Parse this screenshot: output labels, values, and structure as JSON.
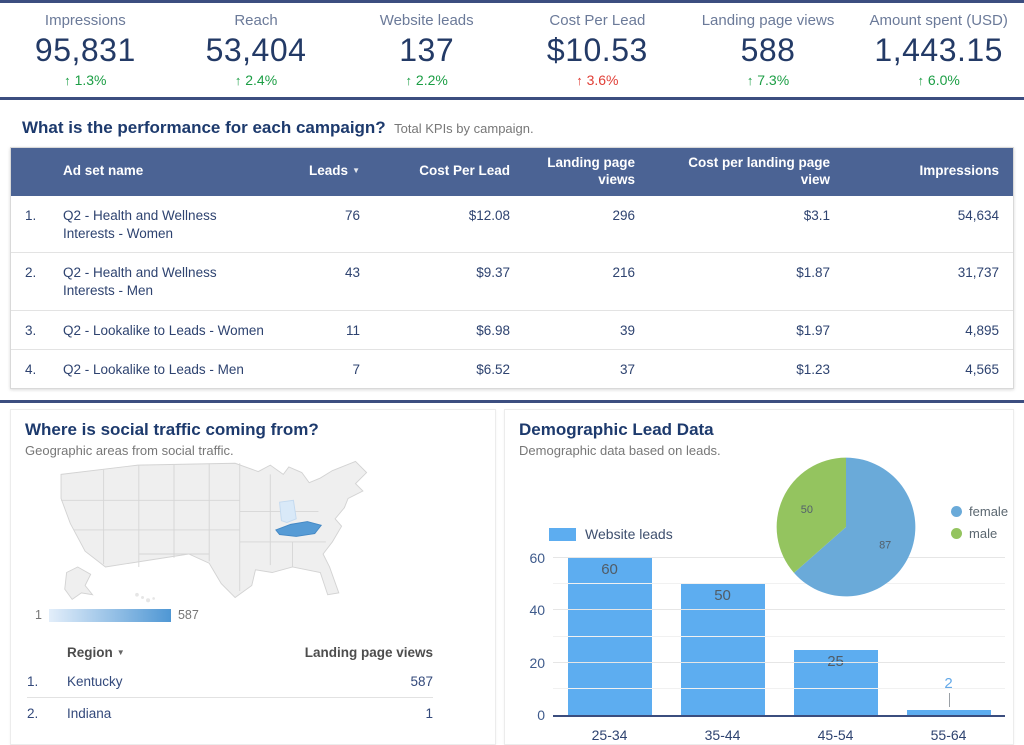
{
  "scorecards": [
    {
      "label": "Impressions",
      "value": "95,831",
      "delta": "1.3%",
      "direction": "up",
      "trend_color": "green"
    },
    {
      "label": "Reach",
      "value": "53,404",
      "delta": "2.4%",
      "direction": "up",
      "trend_color": "green"
    },
    {
      "label": "Website leads",
      "value": "137",
      "delta": "2.2%",
      "direction": "up",
      "trend_color": "green"
    },
    {
      "label": "Cost Per Lead",
      "value": "$10.53",
      "delta": "3.6%",
      "direction": "up",
      "trend_color": "red"
    },
    {
      "label": "Landing page views",
      "value": "588",
      "delta": "7.3%",
      "direction": "up",
      "trend_color": "green"
    },
    {
      "label": "Amount spent (USD)",
      "value": "1,443.15",
      "delta": "6.0%",
      "direction": "up",
      "trend_color": "green"
    }
  ],
  "campaign_section": {
    "title": "What is the performance for each campaign?",
    "subtitle": "Total KPIs by campaign.",
    "table": {
      "columns": {
        "name": "Ad set name",
        "leads": "Leads",
        "cpl": "Cost Per Lead",
        "lpv": "Landing page views",
        "cplpv": "Cost per landing page view",
        "impressions": "Impressions"
      },
      "sorted_by": "Leads",
      "rows": [
        {
          "index": "1.",
          "name": "Q2 - Health and Wellness Interests - Women",
          "leads": "76",
          "cpl": "$12.08",
          "lpv": "296",
          "cplpv": "$3.1",
          "impressions": "54,634"
        },
        {
          "index": "2.",
          "name": "Q2 - Health and Wellness Interests - Men",
          "leads": "43",
          "cpl": "$9.37",
          "lpv": "216",
          "cplpv": "$1.87",
          "impressions": "31,737"
        },
        {
          "index": "3.",
          "name": "Q2 - Lookalike to Leads - Women",
          "leads": "11",
          "cpl": "$6.98",
          "lpv": "39",
          "cplpv": "$1.97",
          "impressions": "4,895"
        },
        {
          "index": "4.",
          "name": "Q2 - Lookalike to Leads - Men",
          "leads": "7",
          "cpl": "$6.52",
          "lpv": "37",
          "cplpv": "$1.23",
          "impressions": "4,565"
        }
      ]
    }
  },
  "geo_section": {
    "title": "Where is social traffic coming from?",
    "subtitle": "Geographic areas from social traffic.",
    "map": {
      "scale_min": "1",
      "scale_max": "587",
      "state_fill": "#efefef",
      "state_stroke": "#d3d3d3",
      "kentucky_fill": "#569bd5",
      "indiana_fill": "#d9e9f8",
      "scale_start": "#e3eefa",
      "scale_end": "#4f97d4"
    },
    "table": {
      "region_header": "Region",
      "value_header": "Landing page views",
      "rows": [
        {
          "index": "1.",
          "region": "Kentucky",
          "value": "587"
        },
        {
          "index": "2.",
          "region": "Indiana",
          "value": "1"
        }
      ]
    }
  },
  "demo_section": {
    "title": "Demographic Lead Data",
    "subtitle": "Demographic data based on leads.",
    "bar_chart": {
      "legend": "Website leads",
      "color": "#5dadf0",
      "categories": [
        "25-34",
        "35-44",
        "45-54",
        "55-64"
      ],
      "values": [
        60,
        50,
        25,
        2
      ],
      "ymax": 60,
      "yticks": [
        0,
        20,
        40,
        60
      ]
    },
    "pie_chart": {
      "labels": [
        "female",
        "male"
      ],
      "values": [
        87,
        50
      ],
      "colors": [
        "#6aaad9",
        "#94c45f"
      ]
    }
  },
  "chart_data": [
    {
      "type": "table",
      "title": "What is the performance for each campaign?",
      "subtitle": "Total KPIs by campaign.",
      "columns": [
        "Ad set name",
        "Leads",
        "Cost Per Lead",
        "Landing page views",
        "Cost per landing page view",
        "Impressions"
      ],
      "rows": [
        [
          "Q2 - Health and Wellness Interests - Women",
          76,
          12.08,
          296,
          3.1,
          54634
        ],
        [
          "Q2 - Health and Wellness Interests - Men",
          43,
          9.37,
          216,
          1.87,
          31737
        ],
        [
          "Q2 - Lookalike to Leads - Women",
          11,
          6.98,
          39,
          1.97,
          4895
        ],
        [
          "Q2 - Lookalike to Leads - Men",
          7,
          6.52,
          37,
          1.23,
          4565
        ]
      ]
    },
    {
      "type": "bar",
      "title": "Demographic Lead Data",
      "subtitle": "Demographic data based on leads.",
      "categories": [
        "25-34",
        "35-44",
        "45-54",
        "55-64"
      ],
      "series": [
        {
          "name": "Website leads",
          "values": [
            60,
            50,
            25,
            2
          ]
        }
      ],
      "xlabel": "",
      "ylabel": "",
      "ylim": [
        0,
        60
      ],
      "yticks": [
        0,
        20,
        40,
        60
      ],
      "grid": true,
      "legend_position": "top-left",
      "bar_color": "#5dadf0"
    },
    {
      "type": "pie",
      "labels": [
        "female",
        "male"
      ],
      "values": [
        87,
        50
      ],
      "colors": [
        "#6aaad9",
        "#94c45f"
      ],
      "legend_position": "right"
    },
    {
      "type": "heatmap",
      "subtype": "us-choropleth",
      "title": "Where is social traffic coming from?",
      "regions": [
        "Kentucky",
        "Indiana"
      ],
      "values": [
        587,
        1
      ],
      "scale": [
        1,
        587
      ]
    }
  ]
}
